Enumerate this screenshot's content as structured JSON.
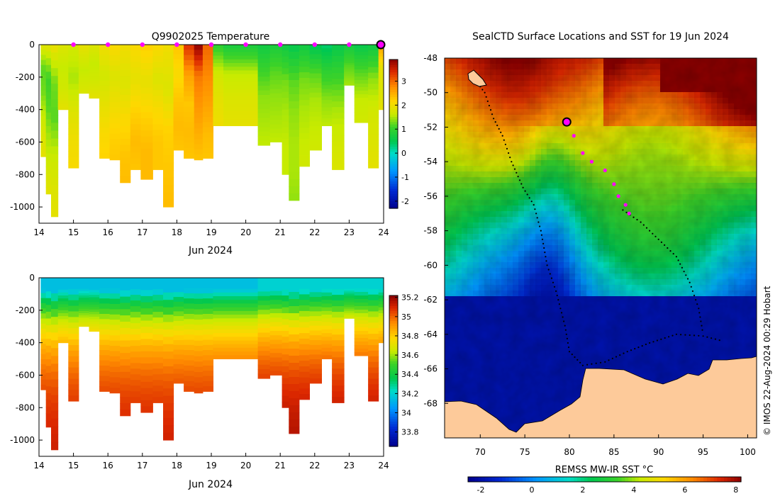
{
  "chart_data": [
    {
      "id": "temperature",
      "type": "heatmap",
      "title": "Q9902025  Temperature",
      "xlabel": "Jun 2024",
      "xlim": [
        14,
        24
      ],
      "x_ticks": [
        "14",
        "15",
        "16",
        "17",
        "18",
        "19",
        "20",
        "21",
        "22",
        "23",
        "24"
      ],
      "ylim": [
        -1100,
        0
      ],
      "y_ticks": [
        "0",
        "-200",
        "-400",
        "-600",
        "-800",
        "-1000"
      ],
      "colorbar": {
        "min": -2.3,
        "max": 3.9,
        "ticks": [
          "-2",
          "-1",
          "0",
          "1",
          "2",
          "3"
        ]
      },
      "dive_markers_day": [
        15.0,
        16.0,
        17.0,
        18.0,
        19.0,
        20.0,
        21.0,
        22.0,
        23.0
      ],
      "current_marker_day": 24.0,
      "profiles": [
        {
          "day": 14.05,
          "depth": 690,
          "values": [
            1.8,
            1.2,
            1.3,
            1.6,
            1.8,
            1.9
          ]
        },
        {
          "day": 14.2,
          "depth": 920,
          "values": [
            1.8,
            1.1,
            1.2,
            1.5,
            1.7,
            1.9
          ]
        },
        {
          "day": 14.35,
          "depth": 1060,
          "values": [
            1.9,
            1.3,
            1.2,
            1.6,
            1.8,
            1.9
          ]
        },
        {
          "day": 14.55,
          "depth": 400,
          "values": [
            1.8,
            1.6,
            1.7,
            1.9
          ]
        },
        {
          "day": 14.85,
          "depth": 760,
          "values": [
            1.7,
            1.5,
            1.8,
            2.0,
            2.1
          ]
        },
        {
          "day": 15.15,
          "depth": 300,
          "values": [
            1.9,
            1.6,
            1.8
          ]
        },
        {
          "day": 15.45,
          "depth": 330,
          "values": [
            1.8,
            1.6,
            1.7,
            1.9
          ]
        },
        {
          "day": 15.75,
          "depth": 700,
          "values": [
            2.0,
            1.7,
            1.9,
            2.1,
            2.2
          ]
        },
        {
          "day": 16.05,
          "depth": 710,
          "values": [
            2.1,
            1.8,
            2.0,
            2.2,
            2.3
          ]
        },
        {
          "day": 16.35,
          "depth": 850,
          "values": [
            2.0,
            1.8,
            2.1,
            2.3,
            2.4
          ]
        },
        {
          "day": 16.65,
          "depth": 770,
          "values": [
            2.1,
            1.9,
            2.2,
            2.4,
            2.3
          ]
        },
        {
          "day": 16.95,
          "depth": 830,
          "values": [
            2.2,
            1.9,
            2.2,
            2.4,
            2.4
          ]
        },
        {
          "day": 17.3,
          "depth": 770,
          "values": [
            2.1,
            1.8,
            2.1,
            2.3,
            2.3
          ]
        },
        {
          "day": 17.6,
          "depth": 1000,
          "values": [
            2.0,
            1.8,
            2.2,
            2.3,
            2.4
          ]
        },
        {
          "day": 17.9,
          "depth": 650,
          "values": [
            2.3,
            2.1,
            2.3,
            2.4,
            2.3
          ]
        },
        {
          "day": 18.2,
          "depth": 700,
          "values": [
            3.3,
            2.6,
            2.3,
            2.4,
            2.3
          ]
        },
        {
          "day": 18.5,
          "depth": 710,
          "values": [
            3.8,
            2.9,
            2.7,
            2.5,
            2.3
          ]
        },
        {
          "day": 18.75,
          "depth": 700,
          "values": [
            3.0,
            2.8,
            2.6,
            2.4,
            2.3
          ]
        },
        {
          "day": 19.05,
          "depth": 500,
          "values": [
            1.0,
            1.7,
            1.9,
            2.0
          ]
        },
        {
          "day": 19.35,
          "depth": 500,
          "values": [
            0.8,
            1.6,
            1.8,
            1.9
          ]
        },
        {
          "day": 20.35,
          "depth": 620,
          "values": [
            0.7,
            1.1,
            1.4,
            1.5,
            1.6
          ]
        },
        {
          "day": 20.7,
          "depth": 600,
          "values": [
            0.8,
            1.2,
            1.4,
            1.5,
            1.6
          ]
        },
        {
          "day": 21.05,
          "depth": 800,
          "values": [
            0.7,
            1.3,
            1.5,
            1.6,
            1.6
          ]
        },
        {
          "day": 21.25,
          "depth": 960,
          "values": [
            0.6,
            1.2,
            1.4,
            1.5,
            1.5,
            1.4
          ]
        },
        {
          "day": 21.55,
          "depth": 750,
          "values": [
            0.7,
            1.3,
            1.5,
            1.6,
            1.7
          ]
        },
        {
          "day": 21.85,
          "depth": 650,
          "values": [
            0.5,
            1.2,
            1.5,
            1.6,
            1.7
          ]
        },
        {
          "day": 22.2,
          "depth": 500,
          "values": [
            0.4,
            1.0,
            1.4,
            1.6
          ]
        },
        {
          "day": 22.5,
          "depth": 770,
          "values": [
            0.6,
            1.1,
            1.5,
            1.7,
            1.8
          ]
        },
        {
          "day": 22.85,
          "depth": 250,
          "values": [
            0.7,
            1.2,
            1.5
          ]
        },
        {
          "day": 23.15,
          "depth": 480,
          "values": [
            0.6,
            1.2,
            1.6,
            1.7
          ]
        },
        {
          "day": 23.55,
          "depth": 760,
          "values": [
            0.7,
            1.4,
            1.7,
            1.8,
            1.9
          ]
        },
        {
          "day": 23.85,
          "depth": 400,
          "values": [
            2.6,
            1.9,
            1.8,
            1.9
          ]
        }
      ]
    },
    {
      "id": "salinity",
      "type": "heatmap",
      "title": "",
      "xlabel": "Jun 2024",
      "xlim": [
        14,
        24
      ],
      "x_ticks": [
        "14",
        "15",
        "16",
        "17",
        "18",
        "19",
        "20",
        "21",
        "22",
        "23",
        "24"
      ],
      "ylim": [
        -1100,
        0
      ],
      "y_ticks": [
        "0",
        "-200",
        "-400",
        "-600",
        "-800",
        "-1000"
      ],
      "colorbar": {
        "min": 33.65,
        "max": 35.22,
        "ticks": [
          "33.8",
          "34",
          "34.2",
          "34.4",
          "34.6",
          "34.8",
          "35",
          "35.2"
        ]
      }
    },
    {
      "id": "sst_map",
      "type": "heatmap",
      "title": "SealCTD Surface Locations and SST for 19 Jun 2024",
      "xlim": [
        66,
        101
      ],
      "ylim": [
        -70,
        -48
      ],
      "x_ticks": [
        "70",
        "75",
        "80",
        "85",
        "90",
        "95",
        "100"
      ],
      "y_ticks": [
        "-48",
        "-50",
        "-52",
        "-54",
        "-56",
        "-58",
        "-60",
        "-62",
        "-64",
        "-66",
        "-68"
      ],
      "colorbar": {
        "label": "REMSS MW-IR SST °C",
        "min": -2.5,
        "max": 8.2,
        "ticks": [
          "-2",
          "0",
          "2",
          "4",
          "6",
          "8"
        ]
      },
      "track_black": [
        [
          69.5,
          -49.3
        ],
        [
          70.5,
          -50
        ],
        [
          71.5,
          -51.5
        ],
        [
          72.5,
          -52.5
        ],
        [
          73.5,
          -54
        ],
        [
          74.8,
          -55.5
        ],
        [
          76,
          -56.5
        ],
        [
          76.8,
          -58
        ],
        [
          77.5,
          -60
        ],
        [
          78.5,
          -61.5
        ],
        [
          79.5,
          -63.5
        ],
        [
          80,
          -65
        ],
        [
          81.5,
          -65.8
        ],
        [
          84,
          -65.6
        ],
        [
          86.5,
          -65
        ],
        [
          89,
          -64.5
        ],
        [
          92,
          -64
        ],
        [
          95,
          -64.1
        ],
        [
          97.3,
          -64.4
        ]
      ],
      "track_black2": [
        [
          86,
          -56.8
        ],
        [
          88,
          -57.5
        ],
        [
          90,
          -58.5
        ],
        [
          92,
          -59.5
        ],
        [
          93.5,
          -61
        ],
        [
          94.5,
          -62.5
        ],
        [
          95,
          -64
        ]
      ],
      "track_magenta": [
        [
          79.7,
          -51.7
        ],
        [
          80.5,
          -52.5
        ],
        [
          81.5,
          -53.5
        ],
        [
          82.5,
          -54
        ],
        [
          84,
          -54.5
        ],
        [
          85,
          -55.3
        ],
        [
          85.5,
          -56
        ],
        [
          86.3,
          -56.5
        ],
        [
          86.7,
          -57
        ]
      ],
      "current_location": [
        79.7,
        -51.7
      ]
    }
  ],
  "watermark": "© IMOS 22-Aug-2024 00:29 Hobart"
}
